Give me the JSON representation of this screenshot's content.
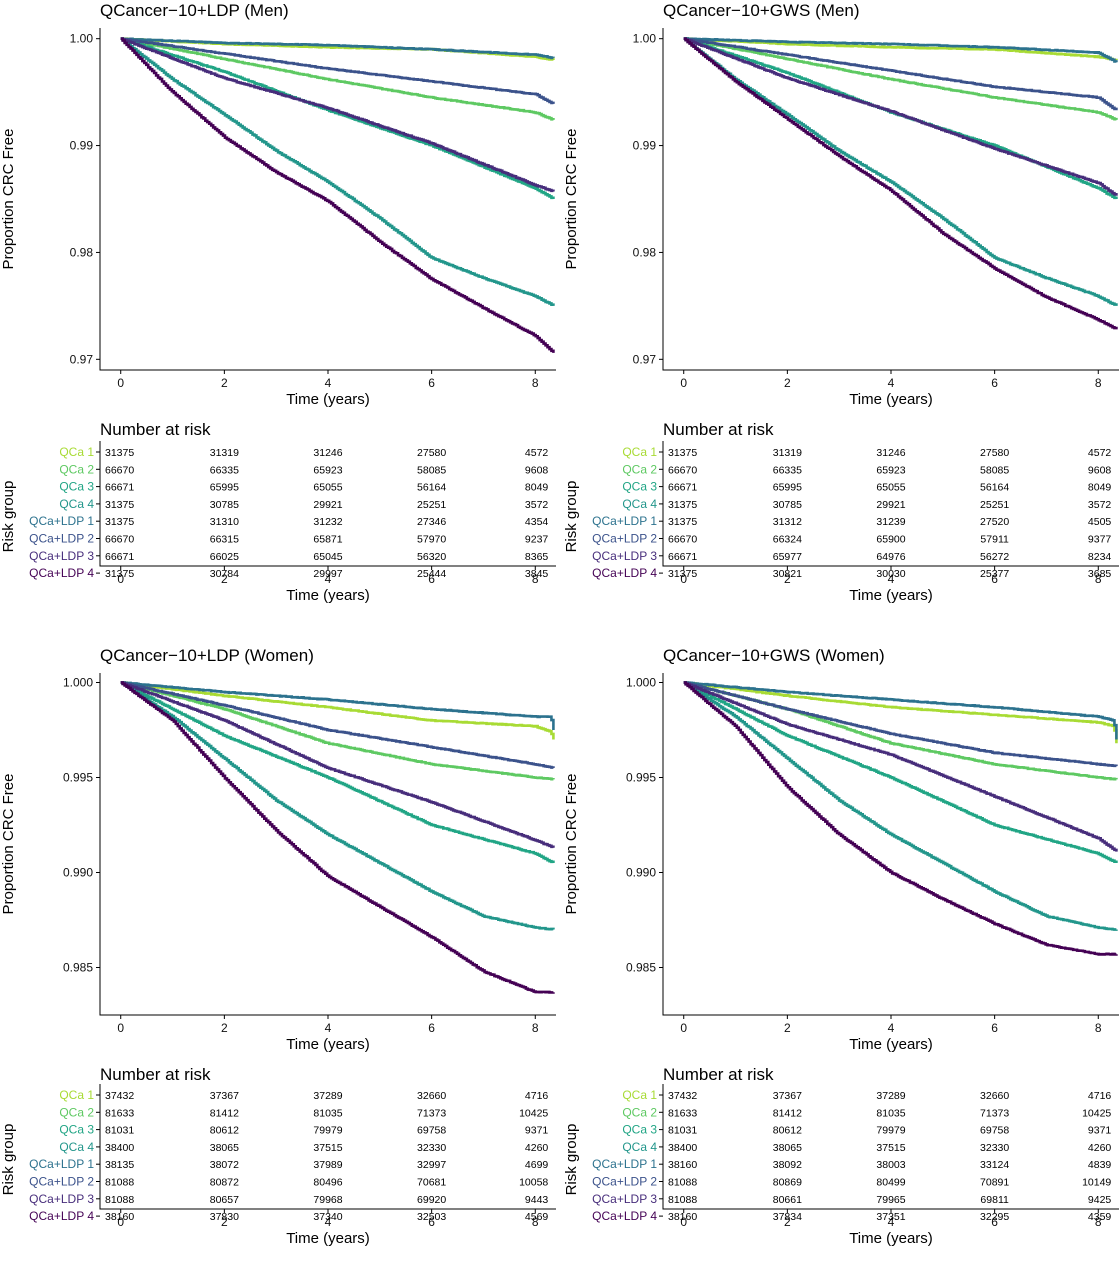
{
  "colors": {
    "QCa 1": "#a8db34",
    "QCa 2": "#5ec962",
    "QCa 3": "#21a585",
    "QCa 4": "#22968b",
    "QCa+LDP 1": "#2c728e",
    "QCa+LDP 2": "#3b528b",
    "QCa+LDP 3": "#472d7b",
    "QCa+LDP 4": "#440154"
  },
  "chart_data": [
    {
      "type": "line",
      "title": "QCancer−10+LDP (Men)",
      "xlabel": "Time (years)",
      "ylabel": "Proportion CRC Free",
      "xlim": [
        -0.4,
        8.4
      ],
      "ylim": [
        0.969,
        1.001
      ],
      "xticks": [
        0,
        2,
        4,
        6,
        8
      ],
      "yticks": [
        0.97,
        0.98,
        0.99,
        1.0
      ],
      "ytick_labels": [
        "0.97",
        "0.98",
        "0.99",
        "1.00"
      ],
      "grid": false,
      "series": [
        {
          "name": "QCa 1",
          "x": [
            0,
            2,
            4,
            6,
            8,
            8.35
          ],
          "y": [
            1.0,
            0.9995,
            0.9992,
            0.999,
            0.9983,
            0.998
          ]
        },
        {
          "name": "QCa 2",
          "x": [
            0,
            2,
            4,
            6,
            8,
            8.35
          ],
          "y": [
            1.0,
            0.9981,
            0.9962,
            0.9945,
            0.9931,
            0.9924
          ]
        },
        {
          "name": "QCa 3",
          "x": [
            0,
            2,
            4,
            6,
            8,
            8.35
          ],
          "y": [
            1.0,
            0.9969,
            0.9933,
            0.99,
            0.986,
            0.985
          ]
        },
        {
          "name": "QCa 4",
          "x": [
            0,
            1,
            2,
            3,
            4,
            5,
            6,
            7,
            8,
            8.35
          ],
          "y": [
            1.0,
            0.9962,
            0.9929,
            0.9895,
            0.9866,
            0.9832,
            0.9795,
            0.9776,
            0.9759,
            0.975
          ]
        },
        {
          "name": "QCa+LDP 1",
          "x": [
            0,
            2,
            4,
            6,
            8,
            8.35
          ],
          "y": [
            1.0,
            0.9996,
            0.9994,
            0.999,
            0.9985,
            0.9982
          ]
        },
        {
          "name": "QCa+LDP 2",
          "x": [
            0,
            2,
            4,
            6,
            8,
            8.35
          ],
          "y": [
            1.0,
            0.9986,
            0.9972,
            0.996,
            0.9948,
            0.9939
          ]
        },
        {
          "name": "QCa+LDP 3",
          "x": [
            0,
            2,
            4,
            6,
            8,
            8.35
          ],
          "y": [
            1.0,
            0.9963,
            0.9935,
            0.9902,
            0.9863,
            0.9857
          ]
        },
        {
          "name": "QCa+LDP 4",
          "x": [
            0,
            1,
            2,
            3,
            4,
            5,
            6,
            7,
            8,
            8.35
          ],
          "y": [
            1.0,
            0.995,
            0.9908,
            0.9875,
            0.9848,
            0.981,
            0.9775,
            0.9748,
            0.9722,
            0.9706
          ]
        }
      ]
    },
    {
      "type": "line",
      "title": "QCancer−10+GWS (Men)",
      "xlabel": "Time (years)",
      "ylabel": "Proportion CRC Free",
      "xlim": [
        -0.4,
        8.4
      ],
      "ylim": [
        0.969,
        1.001
      ],
      "xticks": [
        0,
        2,
        4,
        6,
        8
      ],
      "yticks": [
        0.97,
        0.98,
        0.99,
        1.0
      ],
      "ytick_labels": [
        "0.97",
        "0.98",
        "0.99",
        "1.00"
      ],
      "grid": false,
      "series": [
        {
          "name": "QCa 1",
          "x": [
            0,
            2,
            4,
            6,
            8,
            8.35
          ],
          "y": [
            1.0,
            0.9995,
            0.9992,
            0.999,
            0.9983,
            0.998
          ]
        },
        {
          "name": "QCa 2",
          "x": [
            0,
            2,
            4,
            6,
            8,
            8.35
          ],
          "y": [
            1.0,
            0.9981,
            0.9962,
            0.9945,
            0.9931,
            0.9924
          ]
        },
        {
          "name": "QCa 3",
          "x": [
            0,
            2,
            4,
            6,
            8,
            8.35
          ],
          "y": [
            1.0,
            0.9968,
            0.9931,
            0.99,
            0.986,
            0.985
          ]
        },
        {
          "name": "QCa 4",
          "x": [
            0,
            1,
            2,
            3,
            4,
            5,
            6,
            7,
            8,
            8.35
          ],
          "y": [
            1.0,
            0.9962,
            0.9929,
            0.9895,
            0.9866,
            0.9832,
            0.9795,
            0.9776,
            0.9759,
            0.975
          ]
        },
        {
          "name": "QCa+LDP 1",
          "x": [
            0,
            2,
            4,
            6,
            8,
            8.35
          ],
          "y": [
            1.0,
            0.9997,
            0.9995,
            0.9992,
            0.9987,
            0.9978
          ]
        },
        {
          "name": "QCa+LDP 2",
          "x": [
            0,
            2,
            4,
            6,
            8,
            8.35
          ],
          "y": [
            1.0,
            0.9985,
            0.997,
            0.9955,
            0.9945,
            0.9933
          ]
        },
        {
          "name": "QCa+LDP 3",
          "x": [
            0,
            2,
            4,
            6,
            8,
            8.35
          ],
          "y": [
            1.0,
            0.9963,
            0.9932,
            0.9897,
            0.9865,
            0.9853
          ]
        },
        {
          "name": "QCa+LDP 4",
          "x": [
            0,
            1,
            2,
            3,
            4,
            5,
            6,
            7,
            8,
            8.35
          ],
          "y": [
            1.0,
            0.996,
            0.9925,
            0.989,
            0.9858,
            0.9818,
            0.9785,
            0.9758,
            0.9737,
            0.9728
          ]
        }
      ]
    },
    {
      "type": "line",
      "title": "QCancer−10+LDP (Women)",
      "xlabel": "Time (years)",
      "ylabel": "Proportion CRC Free",
      "xlim": [
        -0.4,
        8.4
      ],
      "ylim": [
        0.9825,
        1.0005
      ],
      "xticks": [
        0,
        2,
        4,
        6,
        8
      ],
      "yticks": [
        0.985,
        0.99,
        0.995,
        1.0
      ],
      "ytick_labels": [
        "0.985",
        "0.990",
        "0.995",
        "1.000"
      ],
      "grid": false,
      "series": [
        {
          "name": "QCa 1",
          "x": [
            0,
            2,
            4,
            6,
            8,
            8.3,
            8.35
          ],
          "y": [
            1.0,
            0.9993,
            0.9987,
            0.998,
            0.9977,
            0.9974,
            0.997
          ]
        },
        {
          "name": "QCa 2",
          "x": [
            0,
            2,
            4,
            6,
            8,
            8.35
          ],
          "y": [
            1.0,
            0.9986,
            0.9968,
            0.9957,
            0.995,
            0.9949
          ]
        },
        {
          "name": "QCa 3",
          "x": [
            0,
            2,
            4,
            6,
            8,
            8.35
          ],
          "y": [
            1.0,
            0.9972,
            0.995,
            0.9925,
            0.991,
            0.9905
          ]
        },
        {
          "name": "QCa 4",
          "x": [
            0,
            1,
            2,
            3,
            4,
            5,
            6,
            7,
            8,
            8.35
          ],
          "y": [
            1.0,
            0.9982,
            0.996,
            0.9938,
            0.992,
            0.9905,
            0.989,
            0.9877,
            0.9871,
            0.987
          ]
        },
        {
          "name": "QCa+LDP 1",
          "x": [
            0,
            2,
            4,
            6,
            8,
            8.3,
            8.35
          ],
          "y": [
            1.0,
            0.9995,
            0.9991,
            0.9986,
            0.9982,
            0.9982,
            0.9975
          ]
        },
        {
          "name": "QCa+LDP 2",
          "x": [
            0,
            2,
            4,
            6,
            8,
            8.35
          ],
          "y": [
            1.0,
            0.9988,
            0.9975,
            0.9966,
            0.9957,
            0.9955
          ]
        },
        {
          "name": "QCa+LDP 3",
          "x": [
            0,
            2,
            4,
            6,
            8,
            8.35
          ],
          "y": [
            1.0,
            0.998,
            0.9955,
            0.9937,
            0.9917,
            0.9913
          ]
        },
        {
          "name": "QCa+LDP 4",
          "x": [
            0,
            1,
            2,
            3,
            4,
            5,
            6,
            7,
            8,
            8.35
          ],
          "y": [
            1.0,
            0.998,
            0.995,
            0.9922,
            0.9898,
            0.9882,
            0.9866,
            0.9848,
            0.9837,
            0.9837
          ]
        }
      ]
    },
    {
      "type": "line",
      "title": "QCancer−10+GWS (Women)",
      "xlabel": "Time (years)",
      "ylabel": "Proportion CRC Free",
      "xlim": [
        -0.4,
        8.4
      ],
      "ylim": [
        0.9825,
        1.0005
      ],
      "xticks": [
        0,
        2,
        4,
        6,
        8
      ],
      "yticks": [
        0.985,
        0.99,
        0.995,
        1.0
      ],
      "ytick_labels": [
        "0.985",
        "0.990",
        "0.995",
        "1.000"
      ],
      "grid": false,
      "series": [
        {
          "name": "QCa 1",
          "x": [
            0,
            2,
            4,
            6,
            8,
            8.3,
            8.35
          ],
          "y": [
            1.0,
            0.9993,
            0.9987,
            0.9983,
            0.9979,
            0.9977,
            0.9968
          ]
        },
        {
          "name": "QCa 2",
          "x": [
            0,
            2,
            4,
            6,
            8,
            8.35
          ],
          "y": [
            1.0,
            0.9986,
            0.9968,
            0.9957,
            0.995,
            0.9949
          ]
        },
        {
          "name": "QCa 3",
          "x": [
            0,
            2,
            4,
            6,
            8,
            8.35
          ],
          "y": [
            1.0,
            0.9972,
            0.995,
            0.9925,
            0.991,
            0.9905
          ]
        },
        {
          "name": "QCa 4",
          "x": [
            0,
            1,
            2,
            3,
            4,
            5,
            6,
            7,
            8,
            8.35
          ],
          "y": [
            1.0,
            0.9982,
            0.996,
            0.9938,
            0.992,
            0.9905,
            0.989,
            0.9877,
            0.9871,
            0.987
          ]
        },
        {
          "name": "QCa+LDP 1",
          "x": [
            0,
            2,
            4,
            6,
            8,
            8.3,
            8.35
          ],
          "y": [
            1.0,
            0.9995,
            0.9991,
            0.9987,
            0.9982,
            0.998,
            0.997
          ]
        },
        {
          "name": "QCa+LDP 2",
          "x": [
            0,
            2,
            4,
            6,
            8,
            8.35
          ],
          "y": [
            1.0,
            0.9986,
            0.9973,
            0.9963,
            0.9957,
            0.9956
          ]
        },
        {
          "name": "QCa+LDP 3",
          "x": [
            0,
            2,
            4,
            6,
            8,
            8.35
          ],
          "y": [
            1.0,
            0.9978,
            0.9962,
            0.994,
            0.9918,
            0.9911
          ]
        },
        {
          "name": "QCa+LDP 4",
          "x": [
            0,
            1,
            2,
            3,
            4,
            5,
            6,
            7,
            8,
            8.35
          ],
          "y": [
            1.0,
            0.9977,
            0.9945,
            0.992,
            0.99,
            0.9886,
            0.9873,
            0.9862,
            0.9857,
            0.9857
          ]
        }
      ]
    },
    {
      "type": "table",
      "title": "Number at risk",
      "ylabel": "Risk group",
      "xlabel": "Time (years)",
      "xticks": [
        0,
        2,
        4,
        6,
        8
      ],
      "groups": [
        "QCa 1",
        "QCa 2",
        "QCa 3",
        "QCa 4",
        "QCa+LDP 1",
        "QCa+LDP 2",
        "QCa+LDP 3",
        "QCa+LDP 4"
      ],
      "rows": [
        [
          "31375",
          "31319",
          "31246",
          "27580",
          "4572"
        ],
        [
          "66670",
          "66335",
          "65923",
          "58085",
          "9608"
        ],
        [
          "66671",
          "65995",
          "65055",
          "56164",
          "8049"
        ],
        [
          "31375",
          "30785",
          "29921",
          "25251",
          "3572"
        ],
        [
          "31375",
          "31310",
          "31232",
          "27346",
          "4354"
        ],
        [
          "66670",
          "66315",
          "65871",
          "57970",
          "9237"
        ],
        [
          "66671",
          "66025",
          "65045",
          "56320",
          "8365"
        ],
        [
          "31375",
          "30784",
          "29997",
          "25444",
          "3845"
        ]
      ]
    },
    {
      "type": "table",
      "title": "Number at risk",
      "ylabel": "Risk group",
      "xlabel": "Time (years)",
      "xticks": [
        0,
        2,
        4,
        6,
        8
      ],
      "groups": [
        "QCa 1",
        "QCa 2",
        "QCa 3",
        "QCa 4",
        "QCa+LDP 1",
        "QCa+LDP 2",
        "QCa+LDP 3",
        "QCa+LDP 4"
      ],
      "rows": [
        [
          "31375",
          "31319",
          "31246",
          "27580",
          "4572"
        ],
        [
          "66670",
          "66335",
          "65923",
          "58085",
          "9608"
        ],
        [
          "66671",
          "65995",
          "65055",
          "56164",
          "8049"
        ],
        [
          "31375",
          "30785",
          "29921",
          "25251",
          "3572"
        ],
        [
          "31375",
          "31312",
          "31239",
          "27520",
          "4505"
        ],
        [
          "66670",
          "66324",
          "65900",
          "57911",
          "9377"
        ],
        [
          "66671",
          "65977",
          "64976",
          "56272",
          "8234"
        ],
        [
          "31375",
          "30821",
          "30030",
          "25377",
          "3685"
        ]
      ]
    },
    {
      "type": "table",
      "title": "Number at risk",
      "ylabel": "Risk group",
      "xlabel": "Time (years)",
      "xticks": [
        0,
        2,
        4,
        6,
        8
      ],
      "groups": [
        "QCa 1",
        "QCa 2",
        "QCa 3",
        "QCa 4",
        "QCa+LDP 1",
        "QCa+LDP 2",
        "QCa+LDP 3",
        "QCa+LDP 4"
      ],
      "rows": [
        [
          "37432",
          "37367",
          "37289",
          "32660",
          "4716"
        ],
        [
          "81633",
          "81412",
          "81035",
          "71373",
          "10425"
        ],
        [
          "81031",
          "80612",
          "79979",
          "69758",
          "9371"
        ],
        [
          "38400",
          "38065",
          "37515",
          "32330",
          "4260"
        ],
        [
          "38135",
          "38072",
          "37989",
          "32997",
          "4699"
        ],
        [
          "81088",
          "80872",
          "80496",
          "70681",
          "10058"
        ],
        [
          "81088",
          "80657",
          "79968",
          "69920",
          "9443"
        ],
        [
          "38160",
          "37830",
          "37340",
          "32503",
          "4569"
        ]
      ]
    },
    {
      "type": "table",
      "title": "Number at risk",
      "ylabel": "Risk group",
      "xlabel": "Time (years)",
      "xticks": [
        0,
        2,
        4,
        6,
        8
      ],
      "groups": [
        "QCa 1",
        "QCa 2",
        "QCa 3",
        "QCa 4",
        "QCa+LDP 1",
        "QCa+LDP 2",
        "QCa+LDP 3",
        "QCa+LDP 4"
      ],
      "rows": [
        [
          "37432",
          "37367",
          "37289",
          "32660",
          "4716"
        ],
        [
          "81633",
          "81412",
          "81035",
          "71373",
          "10425"
        ],
        [
          "81031",
          "80612",
          "79979",
          "69758",
          "9371"
        ],
        [
          "38400",
          "38065",
          "37515",
          "32330",
          "4260"
        ],
        [
          "38160",
          "38092",
          "38003",
          "33124",
          "4839"
        ],
        [
          "81088",
          "80869",
          "80499",
          "70891",
          "10149"
        ],
        [
          "81088",
          "80661",
          "79965",
          "69811",
          "9425"
        ],
        [
          "38160",
          "37834",
          "37351",
          "32295",
          "4359"
        ]
      ]
    }
  ]
}
